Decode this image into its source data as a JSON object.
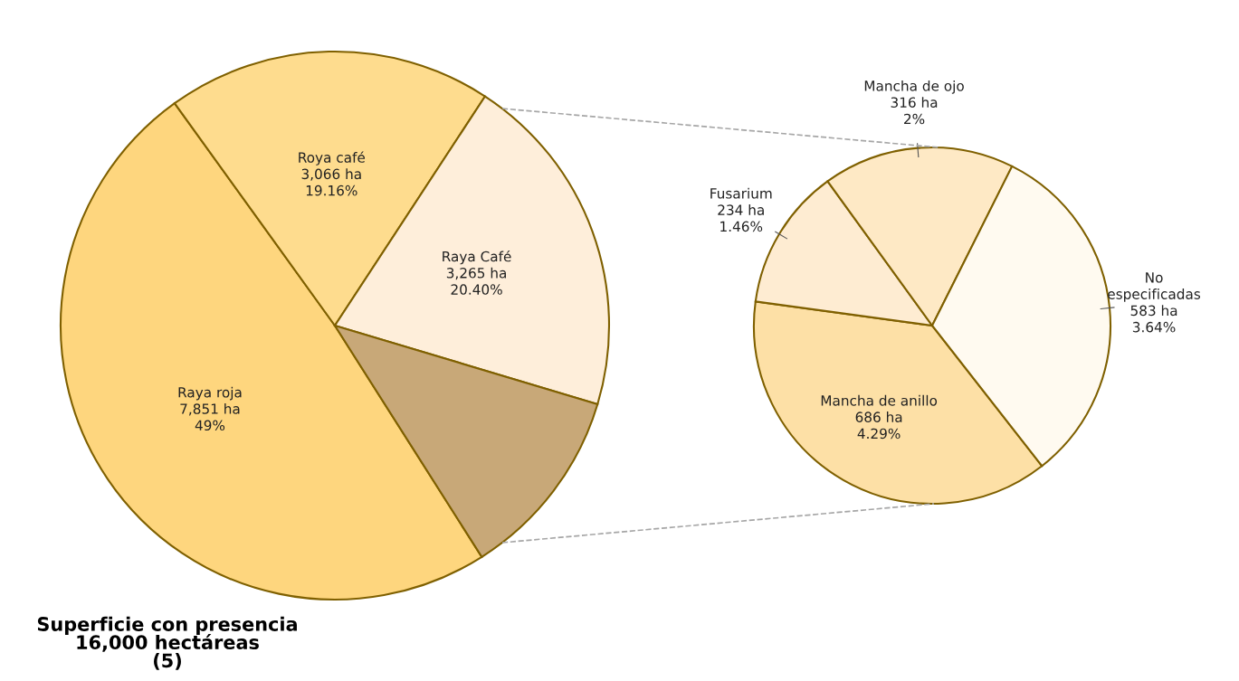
{
  "chart_data": [
    {
      "type": "pie",
      "categories": [
        "Raya roja",
        "Roya café",
        "Raya Café",
        null
      ],
      "values": [
        7851,
        3066,
        3265,
        1819
      ],
      "colors": [
        "#fed67e",
        "#fedc8e",
        "#feeeda",
        "#c8a878"
      ],
      "value_labels": [
        "7,851 ha\n49%",
        "3,066 ha\n19.16%",
        "3,265 ha\n20.40%",
        null
      ],
      "annotations": [
        "Superficie con presencia\n16,000 hectáreas\n(5)"
      ]
    },
    {
      "type": "pie",
      "categories": [
        "Mancha de anillo",
        "Fusarium",
        "Mancha de ojo",
        "No\nespecificadas"
      ],
      "values": [
        686,
        234,
        316,
        583
      ],
      "colors": [
        "#fde0a6",
        "#feecd2",
        "#fee9c5",
        "#fffaf0"
      ],
      "value_labels": [
        "686 ha\n4.29%",
        "234 ha\n1.46%",
        "316 ha\n2%",
        "583 ha\n3.64%"
      ]
    }
  ]
}
